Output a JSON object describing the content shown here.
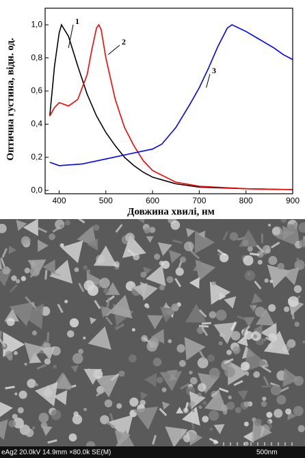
{
  "chart_data": {
    "type": "line",
    "xlabel": "Довжина хвилі, нм",
    "ylabel": "Оптична густина, відн. од.",
    "xlim": [
      370,
      900
    ],
    "ylim": [
      -0.02,
      1.1
    ],
    "xticks": [
      400,
      500,
      600,
      700,
      800,
      900
    ],
    "yticks": [
      {
        "value": 0,
        "label": "0,0"
      },
      {
        "value": 0.2,
        "label": "0,2"
      },
      {
        "value": 0.4,
        "label": "0,4"
      },
      {
        "value": 0.6,
        "label": "0,6"
      },
      {
        "value": 0.8,
        "label": "0,8"
      },
      {
        "value": 1,
        "label": "1,0"
      }
    ],
    "series": [
      {
        "name": "1",
        "color": "#000000",
        "x": [
          380,
          390,
          400,
          405,
          420,
          440,
          460,
          480,
          500,
          520,
          540,
          560,
          580,
          600,
          650,
          700,
          800,
          900
        ],
        "values": [
          0.45,
          0.75,
          0.95,
          1.0,
          0.93,
          0.75,
          0.58,
          0.45,
          0.35,
          0.27,
          0.2,
          0.15,
          0.11,
          0.08,
          0.04,
          0.02,
          0.01,
          0.005
        ]
      },
      {
        "name": "2",
        "color": "#ff0000",
        "x": [
          380,
          390,
          400,
          410,
          420,
          440,
          460,
          470,
          480,
          485,
          490,
          500,
          520,
          540,
          560,
          580,
          600,
          650,
          700,
          800,
          900
        ],
        "values": [
          0.45,
          0.5,
          0.53,
          0.52,
          0.51,
          0.55,
          0.7,
          0.85,
          0.98,
          1.0,
          0.97,
          0.8,
          0.55,
          0.38,
          0.27,
          0.18,
          0.12,
          0.05,
          0.025,
          0.01,
          0.005
        ]
      },
      {
        "name": "3",
        "color": "#0000ff",
        "x": [
          380,
          400,
          450,
          500,
          550,
          600,
          620,
          650,
          680,
          700,
          720,
          740,
          760,
          770,
          800,
          830,
          860,
          880,
          900
        ],
        "values": [
          0.17,
          0.15,
          0.16,
          0.19,
          0.22,
          0.25,
          0.28,
          0.38,
          0.52,
          0.62,
          0.74,
          0.87,
          0.98,
          1.0,
          0.96,
          0.91,
          0.86,
          0.82,
          0.79
        ]
      }
    ]
  },
  "image": {
    "caption": "eAg2 20.0kV 14.9mm ×80.0k SE(M)",
    "scale": "500nm"
  }
}
